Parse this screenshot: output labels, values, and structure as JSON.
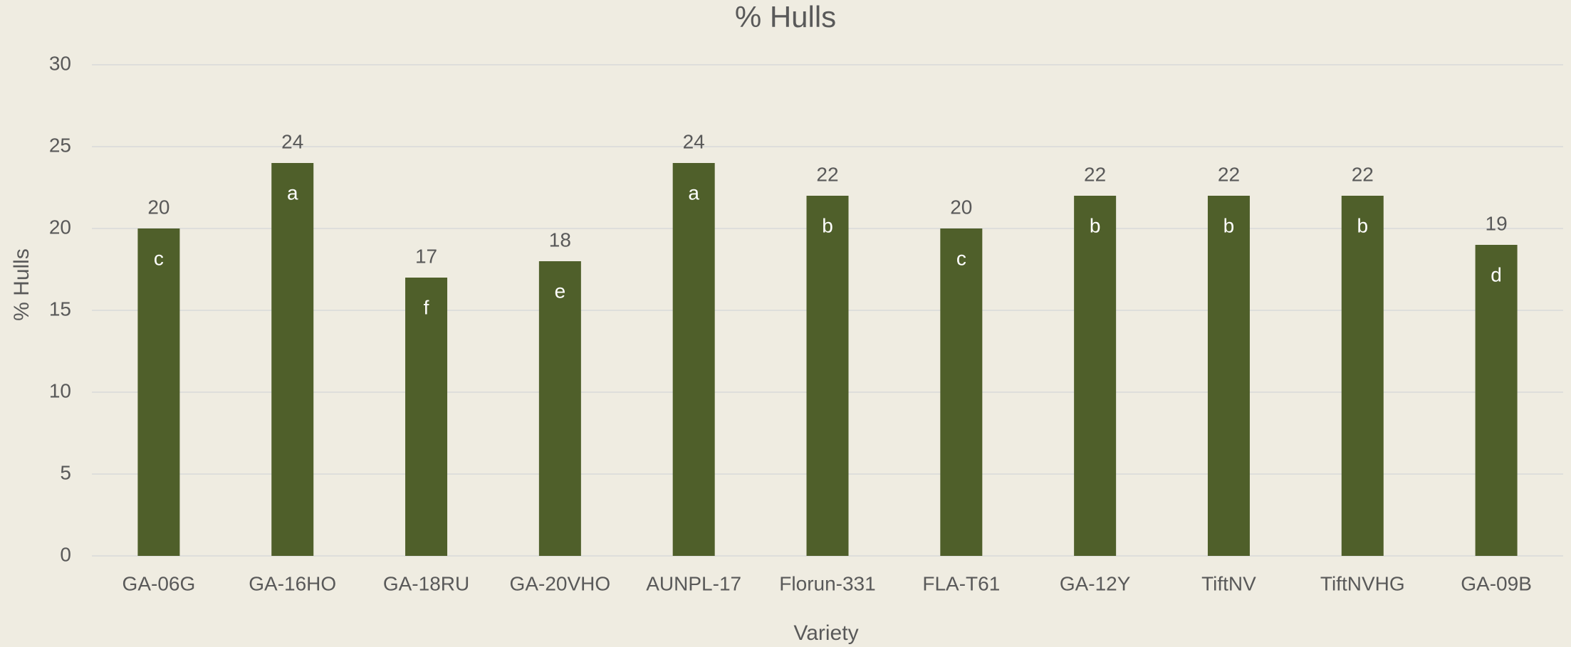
{
  "chart_data": {
    "type": "bar",
    "title": "% Hulls",
    "x_label": "Variety",
    "y_label": "% Hulls",
    "categories": [
      "GA-06G",
      "GA-16HO",
      "GA-18RU",
      "GA-20VHO",
      "AUNPL-17",
      "Florun-331",
      "FLA-T61",
      "GA-12Y",
      "TiftNV",
      "TiftNVHG",
      "GA-09B"
    ],
    "values": [
      20,
      24,
      17,
      18,
      24,
      22,
      20,
      22,
      22,
      22,
      19
    ],
    "annotations": [
      "c",
      "a",
      "f",
      "e",
      "a",
      "b",
      "c",
      "b",
      "b",
      "b",
      "d"
    ],
    "color": "#4f5f2a",
    "ylim": [
      0,
      30
    ],
    "yticks": [
      0,
      5,
      10,
      15,
      20,
      25,
      30
    ],
    "grid": true
  }
}
